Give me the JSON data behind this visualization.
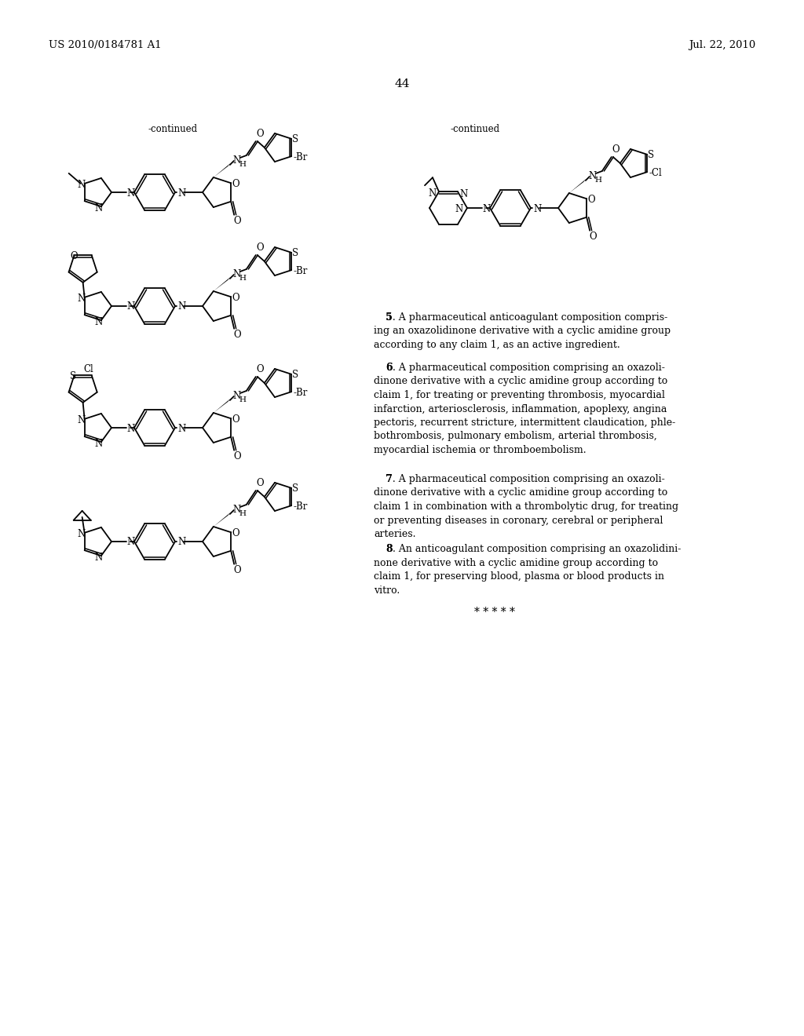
{
  "header_left": "US 2010/0184781 A1",
  "header_right": "Jul. 22, 2010",
  "page_number": "44",
  "continued_left": "-continued",
  "continued_right": "-continued",
  "claim5": "5. A pharmaceutical anticoagulant composition comprising an oxazolidinone derivative with a cyclic amidine group according to any claim 1, as an active ingredient.",
  "claim6_num": "6",
  "claim6": ". A pharmaceutical composition comprising an oxazolidinone derivative with a cyclic amidine group according to claim 1, for treating or preventing thrombosis, myocardial infarction, arteriosclerosis, inflammation, apoplexy, angina pectoris, recurrent stricture, intermittent claudication, phlebothrombosis, pulmonary embolism, arterial thrombosis, myocardial ischemia or thromboembolism.",
  "claim7_num": "7",
  "claim7": ". A pharmaceutical composition comprising an oxazolidinone derivative with a cyclic amidine group according to claim 1 in combination with a thrombolytic drug, for treating or preventing diseases in coronary, cerebral or peripheral arteries.",
  "claim8_num": "8",
  "claim8": ". An anticoagulant composition comprising an oxazolidinone derivative with a cyclic amidine group according to claim 1, for preserving blood, plasma or blood products in vitro.",
  "asterisks": "* * * * *",
  "bg_color": "#ffffff",
  "text_color": "#000000"
}
